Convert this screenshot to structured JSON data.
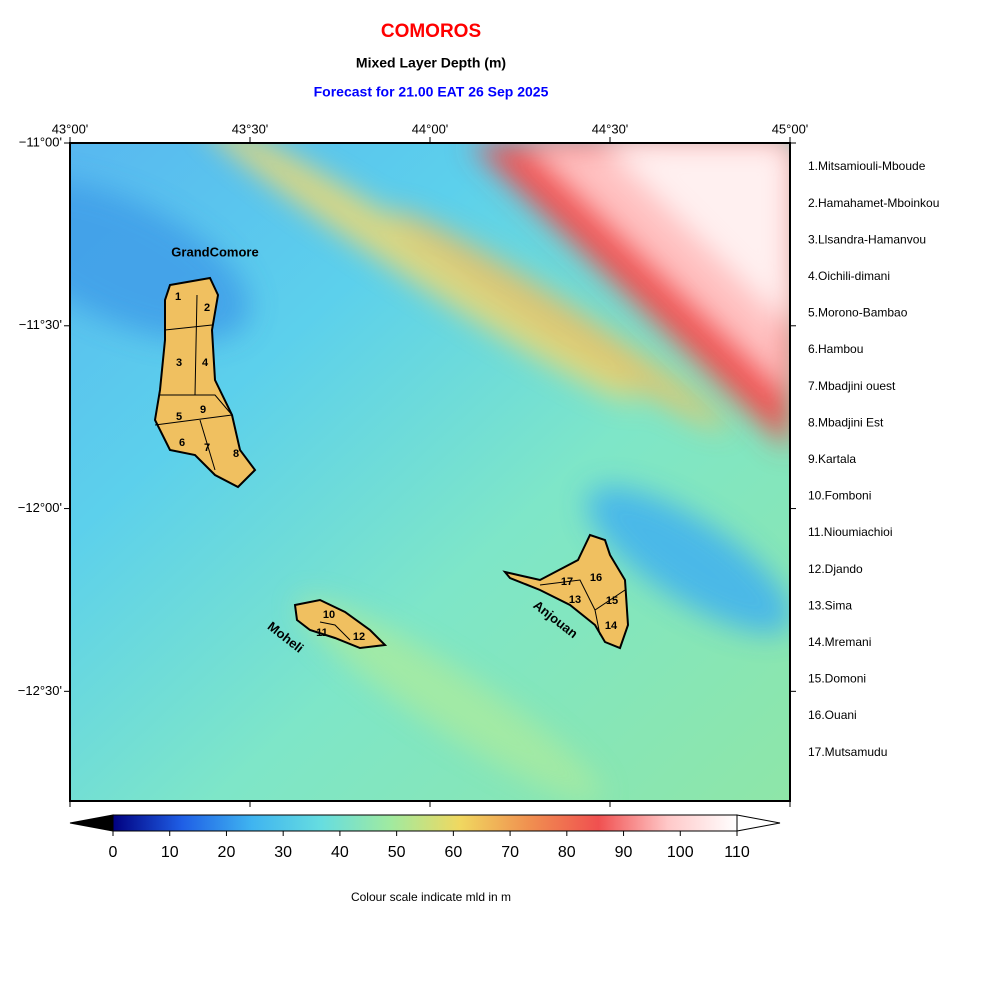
{
  "header": {
    "title": "COMOROS",
    "subtitle": "Mixed Layer Depth (m)",
    "forecast": "Forecast for  21.00 EAT 26 Sep 2025"
  },
  "map": {
    "xlim": [
      43,
      45
    ],
    "ylim": [
      -12.8,
      -11
    ],
    "lon_ticks": [
      {
        "value": 43,
        "label": "43°00'"
      },
      {
        "value": 43.5,
        "label": "43°30'"
      },
      {
        "value": 44,
        "label": "44°00'"
      },
      {
        "value": 44.5,
        "label": "44°30'"
      },
      {
        "value": 45,
        "label": "45°00'"
      }
    ],
    "lat_ticks": [
      {
        "value": -11,
        "label": "−11°00'"
      },
      {
        "value": -11.5,
        "label": "−11°30'"
      },
      {
        "value": -12,
        "label": "−12°00'"
      },
      {
        "value": -12.5,
        "label": "−12°30'"
      }
    ],
    "islands": [
      "GrandComore",
      "Moheli",
      "Anjouan"
    ],
    "district_numbers": [
      "1",
      "2",
      "3",
      "4",
      "5",
      "6",
      "7",
      "8",
      "9",
      "10",
      "11",
      "12",
      "13",
      "14",
      "15",
      "16",
      "17"
    ]
  },
  "districts": [
    "1.Mitsamiouli-Mboude",
    "2.Hamahamet-Mboinkou",
    "3.Llsandra-Hamanvou",
    "4.Oichili-dimani",
    "5.Morono-Bambao",
    "6.Hambou",
    "7.Mbadjini ouest",
    "8.Mbadjini Est",
    "9.Kartala",
    "10.Fomboni",
    "11.Nioumiachioi",
    "12.Djando",
    "13.Sima",
    "14.Mremani",
    "15.Domoni",
    "16.Ouani",
    "17.Mutsamudu"
  ],
  "colorbar": {
    "ticks": [
      0,
      10,
      20,
      30,
      40,
      50,
      60,
      70,
      80,
      90,
      100,
      110
    ],
    "colors": [
      "#000080",
      "#1f5fe6",
      "#3fb4f0",
      "#66dde0",
      "#a0eaa0",
      "#f0d860",
      "#f09050",
      "#f05050",
      "#ffc8c8",
      "#ffffff"
    ],
    "caption": "Colour scale indicate mld in m"
  }
}
